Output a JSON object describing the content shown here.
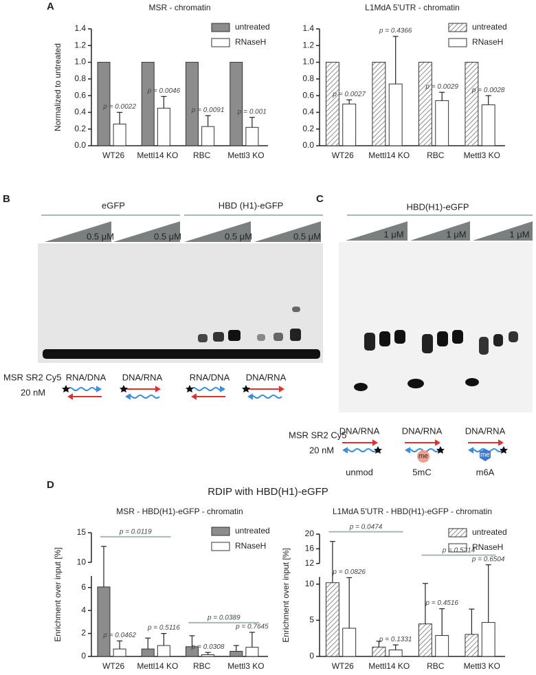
{
  "panel_labels": [
    "A",
    "B",
    "C",
    "D"
  ],
  "panel_d_title": "RDIP with HBD(H1)-eGFP",
  "gel_b": {
    "groups": [
      "eGFP",
      "HBD (H1)-eGFP"
    ],
    "concentrations": [
      "0.5 μM",
      "0.5 μM",
      "0.5 μM",
      "0.5 μM"
    ],
    "probe": "MSR SR2 Cy5",
    "probe_conc": "20 nM",
    "hybrids": [
      "RNA/DNA",
      "DNA/RNA",
      "RNA/DNA",
      "DNA/RNA"
    ]
  },
  "gel_c": {
    "group": "HBD(H1)-eGFP",
    "concentrations": [
      "1 μM",
      "1 μM",
      "1 μM"
    ],
    "probe": "MSR SR2 Cy5",
    "probe_conc": "20 nM",
    "hybrids": [
      "DNA/RNA",
      "DNA/RNA",
      "DNA/RNA"
    ],
    "modifications": [
      "unmod",
      "5mC",
      "m6A"
    ],
    "mod_marks": [
      "me",
      "me"
    ]
  },
  "chart_data": [
    {
      "type": "bar",
      "title": "MSR - chromatin",
      "ylabel": "Normalized to untreated",
      "categories": [
        "WT26",
        "Mettl14 KO",
        "RBC",
        "Mettl3 KO"
      ],
      "series": [
        {
          "name": "untreated",
          "color": "#8c8c8c",
          "values": [
            1,
            1,
            1,
            1
          ]
        },
        {
          "name": "RNaseH",
          "color": "#ffffff",
          "values": [
            0.26,
            0.45,
            0.23,
            0.22
          ],
          "errors": [
            0.14,
            0.14,
            0.13,
            0.12
          ]
        }
      ],
      "annotations": [
        "p = 0.0022",
        "p = 0.0046",
        "p = 0.0091",
        "p = 0.001"
      ],
      "ylim": [
        0,
        1.4
      ],
      "yticks": [
        {
          "value": 0,
          "label": "0.0"
        },
        0.2,
        0.4,
        0.6,
        0.8,
        {
          "value": 1,
          "label": "1.0"
        },
        1.2,
        1.4
      ],
      "legend": "upper right"
    },
    {
      "type": "bar",
      "title": "L1MdA 5'UTR - chromatin",
      "categories": [
        "WT26",
        "Mettl14 KO",
        "RBC",
        "Mettl3 KO"
      ],
      "series": [
        {
          "name": "untreated",
          "color": "#8c8c8c",
          "hatch": true,
          "values": [
            1,
            1,
            1,
            1
          ]
        },
        {
          "name": "RNaseH",
          "color": "#ffffff",
          "values": [
            0.5,
            0.74,
            0.54,
            0.49
          ],
          "errors": [
            0.05,
            0.57,
            0.1,
            0.11
          ]
        }
      ],
      "annotations": [
        "p = 0.0027",
        "p = 0.4366",
        "p = 0.0029",
        "p = 0.0028"
      ],
      "ylim": [
        0,
        1.4
      ],
      "yticks": [
        {
          "value": 0,
          "label": "0.0"
        },
        0.2,
        0.4,
        0.6,
        0.8,
        {
          "value": 1,
          "label": "1.0"
        },
        1.2,
        1.4
      ],
      "legend": "upper right"
    },
    {
      "type": "bar",
      "title": "MSR - HBD(H1)-eGFP - chromatin",
      "ylabel": "Enrichment over input [%]",
      "categories": [
        "WT26",
        "Mettl14 KO",
        "RBC",
        "Mettl3 KO"
      ],
      "series": [
        {
          "name": "untreated",
          "color": "#8c8c8c",
          "values": [
            6.05,
            0.65,
            0.85,
            0.45
          ],
          "errors": [
            6.65,
            0.95,
            0.95,
            0.5
          ]
        },
        {
          "name": "RNaseH",
          "color": "#ffffff",
          "values": [
            0.65,
            0.95,
            0.15,
            0.8
          ],
          "errors": [
            0.7,
            1.05,
            0.2,
            1.3
          ]
        }
      ],
      "annotations": [
        "p = 0.0462",
        "p = 0.5116",
        "p = 0.0308",
        "p = 0.7645"
      ],
      "brackets": [
        {
          "from": 0,
          "to": 1,
          "label": "p = 0.0119"
        },
        {
          "from": 2,
          "to": 3,
          "label": "p = 0.0389"
        }
      ],
      "ylim": [
        0,
        15
      ],
      "ybreak": [
        7,
        10
      ],
      "yticks": [
        0,
        2,
        4,
        6,
        10,
        15
      ],
      "legend": "upper right"
    },
    {
      "type": "bar",
      "title": "L1MdA 5'UTR - HBD(H1)-eGFP - chromatin",
      "ylabel": "Enrichment over input [%]",
      "categories": [
        "WT26",
        "Mettl14 KO",
        "RBC",
        "Mettl3 KO"
      ],
      "series": [
        {
          "name": "untreated",
          "color": "#8c8c8c",
          "hatch": true,
          "values": [
            10.2,
            1.3,
            4.5,
            3.05
          ],
          "errors": [
            7.8,
            0.8,
            5.6,
            3.5
          ]
        },
        {
          "name": "RNaseH",
          "color": "#ffffff",
          "values": [
            3.9,
            0.9,
            2.9,
            4.7
          ],
          "errors": [
            7.0,
            0.7,
            3.7,
            7.2
          ]
        }
      ],
      "annotations": [
        "p = 0.0826",
        "p = 0.1331",
        "p = 0.4516",
        "p = 0.6504"
      ],
      "brackets": [
        {
          "from": 0,
          "to": 1,
          "label": "p = 0.0474"
        },
        {
          "from": 2,
          "to": 3,
          "label": "p = 0.5214"
        }
      ],
      "ylim": [
        0,
        20
      ],
      "ybreak": [
        11,
        12
      ],
      "yticks": [
        0,
        5,
        10,
        12,
        16,
        20
      ],
      "legend": "upper right"
    }
  ]
}
